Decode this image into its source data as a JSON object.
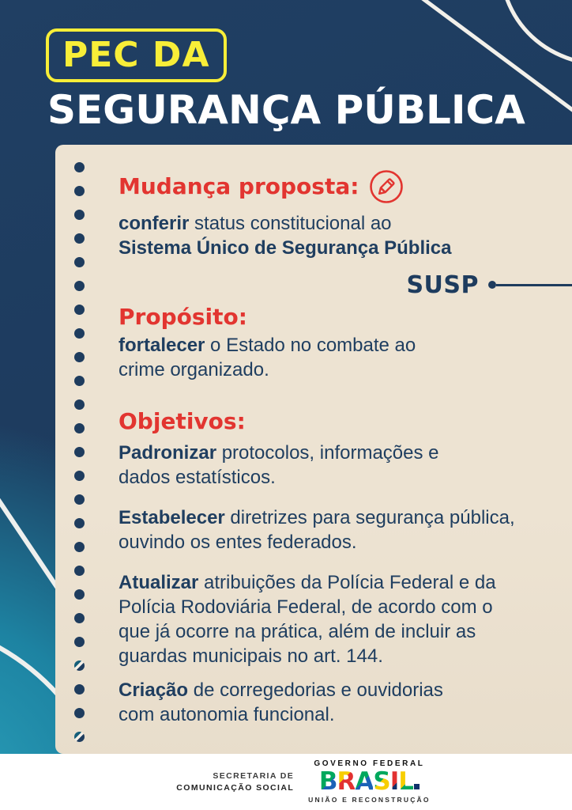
{
  "header": {
    "badge": "PEC DA",
    "title": "SEGURANÇA PÚBLICA"
  },
  "card": {
    "mudanca": {
      "heading": "Mudança proposta:",
      "lead": "conferir",
      "rest": " status constitucional ao\n",
      "bold_line": "Sistema Único de Segurança Pública"
    },
    "susp": "SUSP",
    "proposito": {
      "heading": "Propósito:",
      "lead": "fortalecer",
      "rest": " o Estado no combate ao\ncrime organizado."
    },
    "objetivos": {
      "heading": "Objetivos:",
      "items": [
        {
          "lead": "Padronizar",
          "rest": " protocolos, informações e\ndados estatísticos."
        },
        {
          "lead": "Estabelecer",
          "rest": " diretrizes para segurança pública,\nouvindo os entes federados."
        },
        {
          "lead": "Atualizar",
          "rest": " atribuições da Polícia Federal e da\nPolícia Rodoviária Federal, de acordo com o\nque já ocorre na prática, além de incluir as\nguardas municipais no art. 144."
        },
        {
          "lead": "Criação",
          "rest": " de corregedorias e ouvidorias\ncom autonomia funcional."
        }
      ]
    }
  },
  "footer": {
    "secretaria_line1": "SECRETARIA DE",
    "secretaria_line2": "COMUNICAÇÃO SOCIAL",
    "governo": "GOVERNO FEDERAL",
    "brasil": "BRASIL",
    "slogan": "UNIÃO E RECONSTRUÇÃO"
  },
  "icons": {
    "pencil": "pencil-icon"
  },
  "colors": {
    "background_navy": "#1d3b5e",
    "background_teal": "#1d83a2",
    "card_cream": "#ede3d2",
    "accent_red": "#e23530",
    "text_navy": "#1f3e60",
    "badge_yellow": "#f8ee38",
    "footer_white": "#ffffff"
  }
}
